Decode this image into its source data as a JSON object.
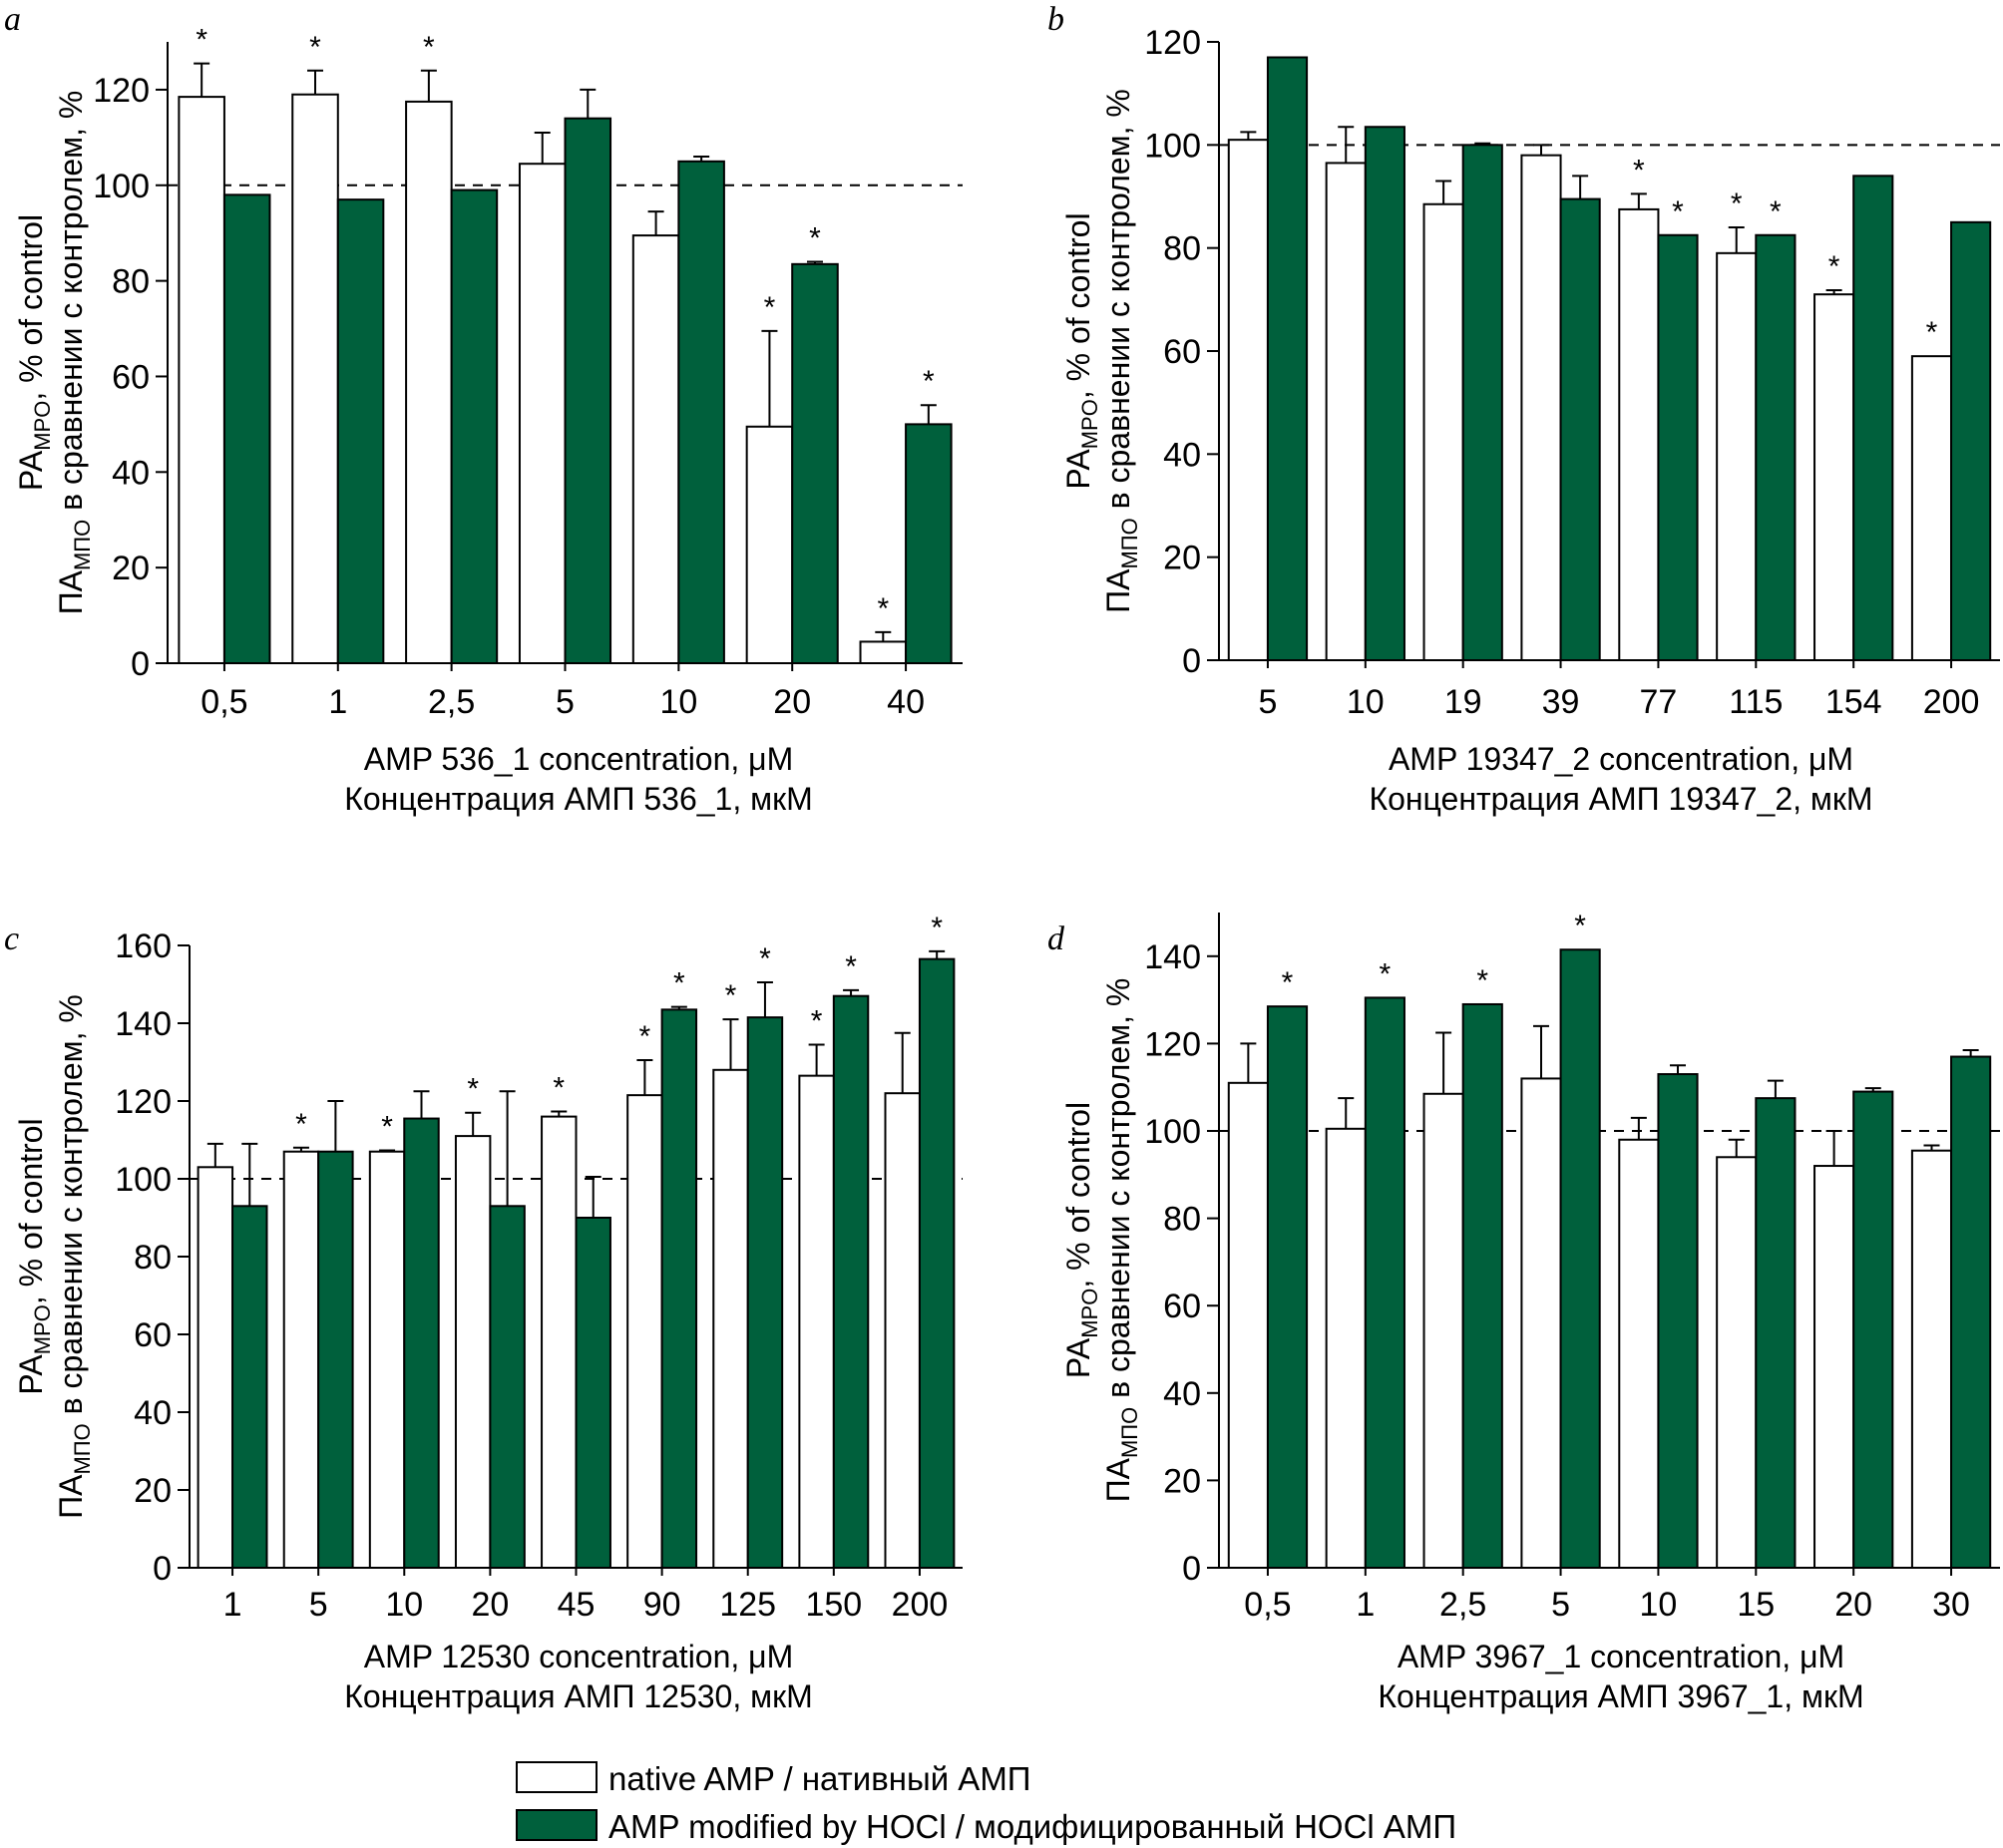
{
  "colors": {
    "native": "#ffffff",
    "modified": "#00603c",
    "stroke": "#000000"
  },
  "legend": {
    "native_label": "native AMP  / нативный АМП",
    "modified_label": "AMP modified by HOCl / модифицированный HOCl АМП"
  },
  "chart_data": [
    {
      "panel": "a",
      "type": "bar",
      "ylabel_en": "PA",
      "ylabel_en_sub": "MPO",
      "ylabel_en_tail": ", % of control",
      "ylabel_ru": "ПА",
      "ylabel_ru_sub": "МПО",
      "ylabel_ru_tail": " в сравнении с контролем, %",
      "xlabel_en": "AMP 536_1 concentration, μM",
      "xlabel_ru": "Концентрация АМП 536_1, мкМ",
      "ylim": [
        0,
        130
      ],
      "yticks": [
        0,
        20,
        40,
        60,
        80,
        100,
        120
      ],
      "ref": 100,
      "categories": [
        "0,5",
        "1",
        "2,5",
        "5",
        "10",
        "20",
        "40"
      ],
      "series": [
        {
          "name": "native AMP",
          "values": [
            118.5,
            119,
            117.5,
            104.5,
            89.5,
            49.5,
            4.5
          ],
          "errors": [
            7,
            5,
            6.5,
            6.5,
            5,
            20,
            2
          ],
          "stars": [
            1,
            1,
            1,
            0,
            0,
            1,
            1
          ]
        },
        {
          "name": "AMP modified by HOCl",
          "values": [
            98,
            97,
            99,
            114,
            105,
            83.5,
            50
          ],
          "errors": [
            0,
            0,
            0,
            6,
            1,
            0.5,
            4
          ],
          "stars": [
            0,
            0,
            0,
            0,
            0,
            1,
            1
          ]
        }
      ]
    },
    {
      "panel": "b",
      "type": "bar",
      "ylabel_en": "PA",
      "ylabel_en_sub": "MPO",
      "ylabel_en_tail": ", % of control",
      "ylabel_ru": "ПА",
      "ylabel_ru_sub": "МПО",
      "ylabel_ru_tail": " в сравнении с контролем, %",
      "xlabel_en": "AMP 19347_2 concentration, μM",
      "xlabel_ru": "Концентрация АМП 19347_2, мкМ",
      "ylim": [
        0,
        120
      ],
      "yticks": [
        0,
        20,
        40,
        60,
        80,
        100,
        120
      ],
      "ref": 100,
      "categories": [
        "5",
        "10",
        "19",
        "39",
        "77",
        "115",
        "154",
        "200"
      ],
      "series": [
        {
          "name": "native AMP",
          "values": [
            101,
            96.5,
            88.5,
            98,
            87.5,
            79,
            71,
            59
          ],
          "errors": [
            1.5,
            7,
            4.5,
            2,
            3,
            5,
            0.8,
            0
          ],
          "stars": [
            0,
            0,
            0,
            0,
            1,
            1,
            1,
            1
          ]
        },
        {
          "name": "AMP modified by HOCl",
          "values": [
            117,
            103.5,
            100,
            89.5,
            82.5,
            82.5,
            94,
            85
          ],
          "errors": [
            0,
            0,
            0.3,
            4.5,
            0,
            0,
            0,
            0
          ],
          "stars": [
            0,
            0,
            0,
            0,
            1,
            1,
            0,
            0
          ]
        }
      ]
    },
    {
      "panel": "c",
      "type": "bar",
      "ylabel_en": "PA",
      "ylabel_en_sub": "MPO",
      "ylabel_en_tail": ", % of control",
      "ylabel_ru": "ПА",
      "ylabel_ru_sub": "МПО",
      "ylabel_ru_tail": " в сравнении с контролем, %",
      "xlabel_en": "AMP 12530 concentration, μM",
      "xlabel_ru": "Концентрация АМП 12530, мкМ",
      "ylim": [
        0,
        160
      ],
      "yticks": [
        0,
        20,
        40,
        60,
        80,
        100,
        120,
        140,
        160
      ],
      "ref": 100,
      "categories": [
        "1",
        "5",
        "10",
        "20",
        "45",
        "90",
        "125",
        "150",
        "200"
      ],
      "series": [
        {
          "name": "native AMP",
          "values": [
            103,
            107,
            107,
            111,
            116,
            121.5,
            128,
            126.5,
            122
          ],
          "errors": [
            6,
            1,
            0.3,
            6,
            1.3,
            9,
            13,
            8,
            15.5
          ],
          "stars": [
            0,
            1,
            1,
            1,
            1,
            1,
            1,
            1,
            0
          ]
        },
        {
          "name": "AMP modified by HOCl",
          "values": [
            93,
            107,
            115.5,
            93,
            90,
            143.5,
            141.5,
            147,
            156.5
          ],
          "errors": [
            16,
            13,
            7,
            29.5,
            10.5,
            0.7,
            9,
            1.5,
            2
          ],
          "stars": [
            0,
            0,
            0,
            0,
            0,
            1,
            1,
            1,
            1
          ]
        }
      ]
    },
    {
      "panel": "d",
      "type": "bar",
      "ylabel_en": "PA",
      "ylabel_en_sub": "MPO",
      "ylabel_en_tail": ", % of control",
      "ylabel_ru": "ПА",
      "ylabel_ru_sub": "МПО",
      "ylabel_ru_tail": " в сравнении с контролем, %",
      "xlabel_en": "AMP 3967_1 concentration, μM",
      "xlabel_ru": "Концентрация АМП 3967_1, мкМ",
      "ylim": [
        0,
        150
      ],
      "yticks": [
        0,
        20,
        40,
        60,
        80,
        100,
        120,
        140
      ],
      "ref": 100,
      "categories": [
        "0,5",
        "1",
        "2,5",
        "5",
        "10",
        "15",
        "20",
        "30"
      ],
      "series": [
        {
          "name": "native AMP",
          "values": [
            111,
            100.5,
            108.5,
            112,
            98,
            94,
            92,
            95.5
          ],
          "errors": [
            9,
            7,
            14,
            12,
            5,
            4,
            8,
            1.2
          ],
          "stars": [
            0,
            0,
            0,
            0,
            0,
            0,
            0,
            0
          ]
        },
        {
          "name": "AMP modified by HOCl",
          "values": [
            128.5,
            130.5,
            129,
            141.5,
            113,
            107.5,
            109,
            117
          ],
          "errors": [
            0,
            0,
            0,
            0,
            2,
            4,
            0.8,
            1.5
          ],
          "stars": [
            1,
            1,
            1,
            1,
            0,
            0,
            0,
            0
          ]
        }
      ]
    }
  ]
}
